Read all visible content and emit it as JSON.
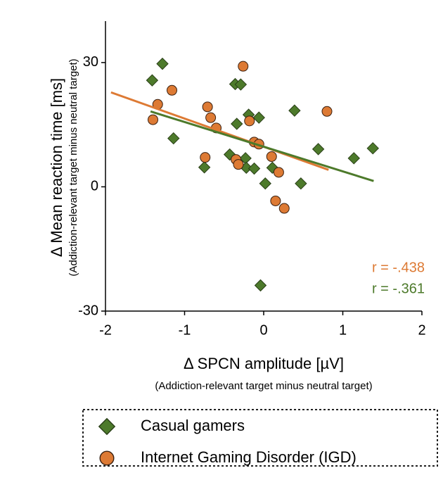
{
  "chart_data": {
    "type": "scatter",
    "ylabel": "Δ Mean reaction time [ms]",
    "ylabel_sub": "(Addiction-relevant target minus neutral target)",
    "xlabel": "Δ SPCN amplitude [µV]",
    "xlabel_sub": "(Addiction-relevant target minus neutral target)",
    "xlim": [
      -2,
      2
    ],
    "ylim": [
      -30,
      40
    ],
    "xticks": [
      -2,
      -1,
      0,
      1,
      2
    ],
    "yticks": [
      -30,
      0,
      30
    ],
    "series": [
      {
        "name": "Casual gamers",
        "color": "#4d7a2b",
        "marker": "diamond",
        "x": [
          -1.41,
          -1.28,
          -1.14,
          -0.75,
          -0.36,
          -0.29,
          -0.34,
          -0.43,
          -0.23,
          -0.19,
          -0.06,
          -0.22,
          -0.12,
          0.02,
          0.11,
          0.39,
          0.47,
          0.69,
          1.14,
          1.38,
          -0.04
        ],
        "y": [
          25.7,
          29.7,
          11.7,
          4.7,
          24.8,
          24.7,
          15.2,
          7.8,
          6.9,
          17.4,
          16.7,
          4.6,
          4.4,
          0.8,
          4.6,
          18.4,
          0.8,
          9.1,
          6.9,
          9.3,
          -23.8
        ],
        "trend_x": [
          -1.43,
          1.39
        ],
        "trend_y": [
          18.2,
          1.4
        ],
        "annotation": "r = -.361"
      },
      {
        "name": "Internet Gaming Disorder (IGD)",
        "color": "#dd7a34",
        "marker": "circle",
        "x": [
          -1.4,
          -1.34,
          -1.16,
          -0.74,
          -0.71,
          -0.67,
          -0.6,
          -0.35,
          -0.32,
          -0.26,
          -0.18,
          -0.12,
          -0.06,
          0.1,
          0.19,
          0.15,
          0.26,
          0.8
        ],
        "y": [
          16.2,
          19.9,
          23.3,
          7.1,
          19.3,
          16.7,
          14.2,
          6.6,
          5.4,
          29.1,
          15.9,
          10.8,
          10.3,
          7.3,
          3.5,
          -3.4,
          -5.2,
          18.2
        ],
        "trend_x": [
          -1.93,
          0.82
        ],
        "trend_y": [
          22.8,
          4.1
        ],
        "annotation": "r = -.438"
      }
    ]
  }
}
